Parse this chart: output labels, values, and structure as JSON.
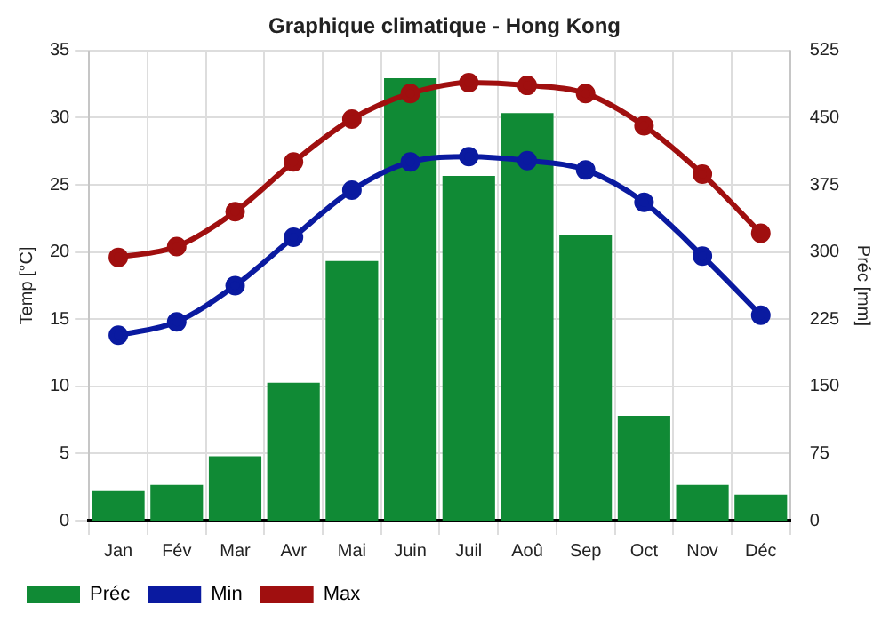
{
  "chart_data": {
    "type": "bar",
    "title": "Graphique climatique - Hong Kong",
    "ylabel": "Temp [°C]",
    "y2label": "Préc [mm]",
    "categories": [
      "Jan",
      "Fév",
      "Mar",
      "Avr",
      "Mai",
      "Juin",
      "Juil",
      "Aoû",
      "Sep",
      "Oct",
      "Nov",
      "Déc"
    ],
    "series": [
      {
        "name": "Préc",
        "axis": "y2",
        "color": "#108a35",
        "values": [
          33,
          40,
          72,
          154,
          290,
          494,
          385,
          455,
          319,
          117,
          40,
          29
        ]
      },
      {
        "name": "Min",
        "type": "line",
        "color": "#0a1aa0",
        "values": [
          13.8,
          14.8,
          17.5,
          21.1,
          24.6,
          26.7,
          27.1,
          26.8,
          26.1,
          23.7,
          19.7,
          15.3
        ]
      },
      {
        "name": "Max",
        "type": "line",
        "color": "#a00f0f",
        "values": [
          19.6,
          20.4,
          23.0,
          26.7,
          29.9,
          31.8,
          32.6,
          32.4,
          31.8,
          29.4,
          25.8,
          21.4
        ]
      }
    ],
    "ylim": [
      0,
      35
    ],
    "yticks": [
      0,
      5,
      10,
      15,
      20,
      25,
      30,
      35
    ],
    "y2lim": [
      0,
      525
    ],
    "y2ticks": [
      0,
      75,
      150,
      225,
      300,
      375,
      450,
      525
    ],
    "grid": true,
    "legend": "bottom",
    "marker": "circle",
    "line_style": "solid"
  }
}
